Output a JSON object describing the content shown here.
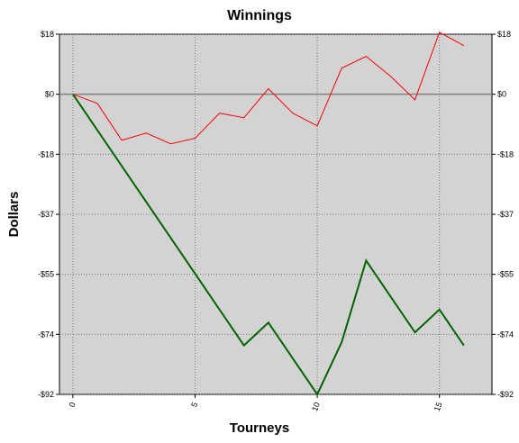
{
  "chart_data": {
    "type": "line",
    "title": "Winnings",
    "xlabel": "Tourneys",
    "ylabel": "Dollars",
    "x": [
      0,
      1,
      2,
      3,
      4,
      5,
      6,
      7,
      8,
      9,
      10,
      11,
      12,
      13,
      14,
      15,
      16
    ],
    "series": [
      {
        "color": "#ff0000",
        "width": 1,
        "values": [
          0,
          -2.8,
          -14.1,
          -11.9,
          -15.2,
          -13.5,
          -5.8,
          -7.2,
          1.7,
          -5.8,
          -9.7,
          8.0,
          11.6,
          5.5,
          -1.7,
          19.0,
          14.9
        ]
      },
      {
        "color": "#006400",
        "width": 2,
        "values": [
          0,
          -11,
          -22,
          -33,
          -44,
          -55,
          -66,
          -77,
          -70,
          -81,
          -92,
          -76,
          -51,
          -62,
          -73,
          -66,
          -77
        ]
      }
    ],
    "xlim": [
      -0.55,
      17.15
    ],
    "xticks": [
      0,
      5,
      10,
      15
    ],
    "ylim": [
      -92,
      18.4
    ],
    "yticks": [
      {
        "value": 18.4,
        "label": "$18"
      },
      {
        "value": 0,
        "label": "$0"
      },
      {
        "value": -18.4,
        "label": "-$18"
      },
      {
        "value": -36.8,
        "label": "-$37"
      },
      {
        "value": -55.2,
        "label": "-$55"
      },
      {
        "value": -73.6,
        "label": "-$74"
      },
      {
        "value": -92,
        "label": "-$92"
      }
    ],
    "grid": true
  }
}
